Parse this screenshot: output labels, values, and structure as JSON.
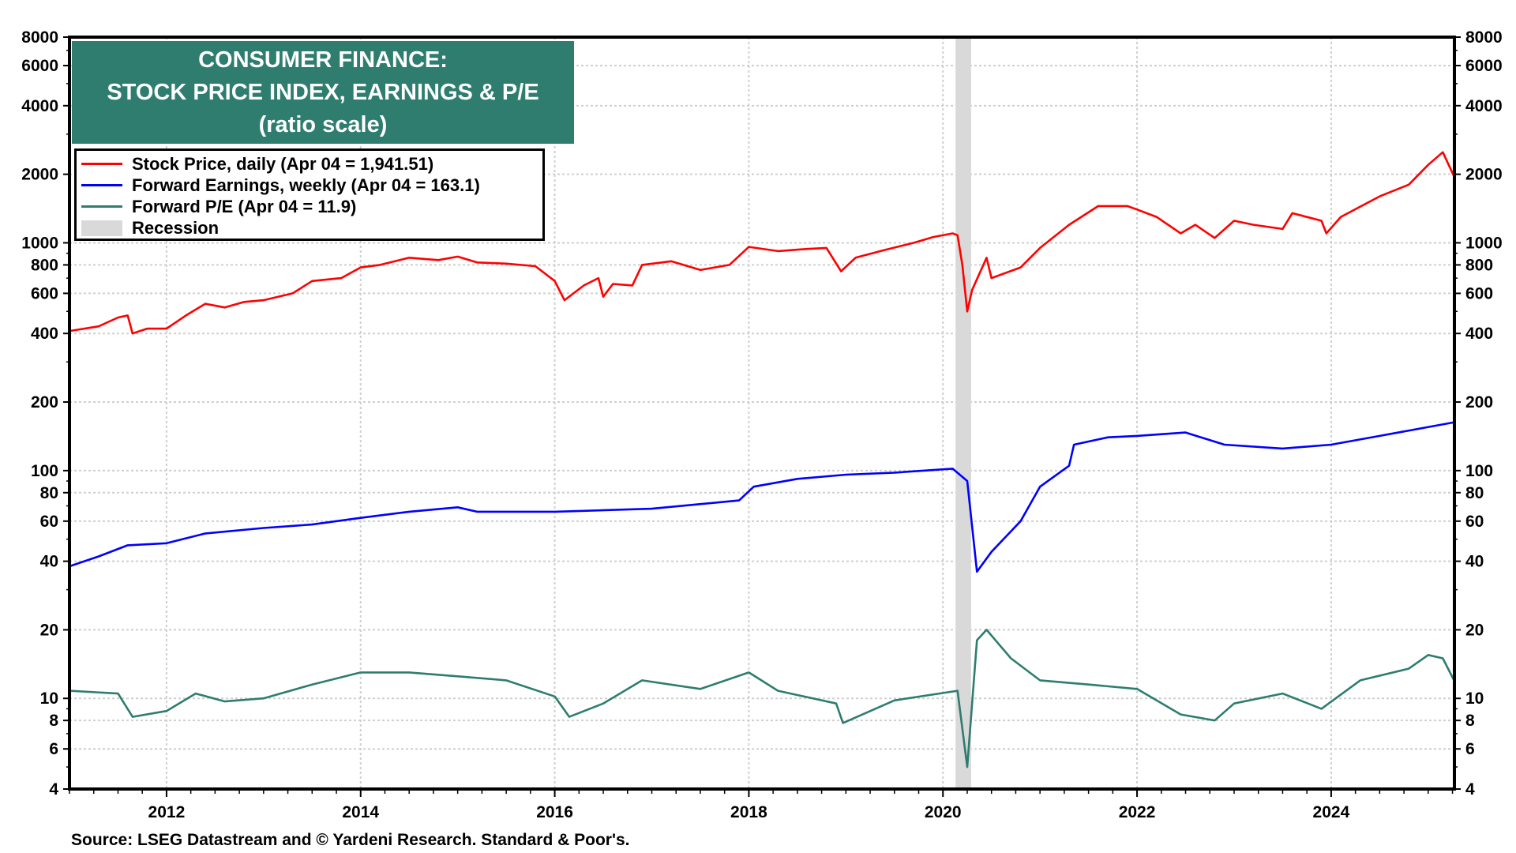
{
  "chart_data": {
    "type": "line",
    "title": "CONSUMER FINANCE:",
    "subtitle": "STOCK PRICE INDEX, EARNINGS & P/E",
    "subtitle2": "(ratio scale)",
    "yscale": "log",
    "ylim": [
      4,
      8000
    ],
    "xlim": [
      2011.0,
      2025.27
    ],
    "y_ticks": [
      "8000",
      "6000",
      "4000",
      "2000",
      "1000",
      "800",
      "600",
      "400",
      "200",
      "100",
      "80",
      "60",
      "40",
      "20",
      "10",
      "8",
      "6",
      "4"
    ],
    "y_tick_values": [
      8000,
      6000,
      4000,
      2000,
      1000,
      800,
      600,
      400,
      200,
      100,
      80,
      60,
      40,
      20,
      10,
      8,
      6,
      4
    ],
    "x_ticks": [
      "2012",
      "2014",
      "2016",
      "2018",
      "2020",
      "2022",
      "2024"
    ],
    "x_tick_values": [
      2012,
      2014,
      2016,
      2018,
      2020,
      2022,
      2024
    ],
    "grid": true,
    "legend_placement": "top-left",
    "recession": {
      "label": "Recession",
      "start": 2020.13,
      "end": 2020.29,
      "color": "#d9d9d9"
    },
    "series": [
      {
        "name": "Stock Price, daily (Apr 04 = 1,941.51)",
        "color": "#ff0000",
        "x": [
          2011.0,
          2011.3,
          2011.5,
          2011.6,
          2011.65,
          2011.8,
          2012.0,
          2012.2,
          2012.4,
          2012.6,
          2012.8,
          2013.0,
          2013.3,
          2013.5,
          2013.8,
          2014.0,
          2014.2,
          2014.5,
          2014.8,
          2015.0,
          2015.2,
          2015.5,
          2015.8,
          2016.0,
          2016.1,
          2016.3,
          2016.45,
          2016.5,
          2016.6,
          2016.8,
          2016.9,
          2017.2,
          2017.5,
          2017.8,
          2018.0,
          2018.3,
          2018.6,
          2018.8,
          2018.95,
          2019.1,
          2019.4,
          2019.7,
          2019.9,
          2020.1,
          2020.15,
          2020.2,
          2020.25,
          2020.3,
          2020.45,
          2020.5,
          2020.8,
          2021.0,
          2021.3,
          2021.6,
          2021.9,
          2022.0,
          2022.2,
          2022.45,
          2022.6,
          2022.8,
          2023.0,
          2023.2,
          2023.5,
          2023.6,
          2023.9,
          2023.95,
          2024.1,
          2024.5,
          2024.8,
          2025.0,
          2025.15,
          2025.27
        ],
        "values": [
          410,
          430,
          470,
          480,
          400,
          420,
          420,
          480,
          540,
          520,
          550,
          560,
          600,
          680,
          700,
          780,
          800,
          860,
          840,
          870,
          820,
          810,
          790,
          680,
          560,
          650,
          700,
          580,
          660,
          650,
          800,
          830,
          760,
          800,
          960,
          920,
          940,
          950,
          750,
          860,
          930,
          1000,
          1060,
          1100,
          1080,
          800,
          500,
          620,
          860,
          700,
          780,
          950,
          1200,
          1450,
          1450,
          1400,
          1300,
          1100,
          1200,
          1050,
          1250,
          1200,
          1150,
          1350,
          1250,
          1100,
          1300,
          1600,
          1800,
          2200,
          2500,
          1941.51
        ]
      },
      {
        "name": "Forward Earnings, weekly (Apr 04 = 163.1)",
        "color": "#0000ff",
        "x": [
          2011.0,
          2011.3,
          2011.6,
          2012.0,
          2012.4,
          2013.0,
          2013.5,
          2014.0,
          2014.5,
          2015.0,
          2015.2,
          2016.0,
          2017.0,
          2017.9,
          2018.05,
          2018.5,
          2019.0,
          2019.5,
          2020.1,
          2020.25,
          2020.35,
          2020.5,
          2020.8,
          2021.0,
          2021.3,
          2021.35,
          2021.7,
          2022.0,
          2022.5,
          2022.9,
          2023.5,
          2024.0,
          2024.5,
          2025.27
        ],
        "values": [
          38,
          42,
          47,
          48,
          53,
          56,
          58,
          62,
          66,
          69,
          66,
          66,
          68,
          74,
          85,
          92,
          96,
          98,
          102,
          90,
          36,
          44,
          60,
          85,
          105,
          130,
          140,
          142,
          147,
          130,
          125,
          130,
          142,
          163.1
        ]
      },
      {
        "name": "Forward P/E (Apr 04 = 11.9)",
        "color": "#2e7d6f",
        "x": [
          2011.0,
          2011.5,
          2011.65,
          2012.0,
          2012.3,
          2012.6,
          2013.0,
          2013.5,
          2014.0,
          2014.5,
          2015.0,
          2015.5,
          2016.0,
          2016.15,
          2016.5,
          2016.9,
          2017.5,
          2018.0,
          2018.3,
          2018.9,
          2018.97,
          2019.5,
          2020.15,
          2020.25,
          2020.35,
          2020.45,
          2020.7,
          2021.0,
          2021.5,
          2022.0,
          2022.45,
          2022.8,
          2023.0,
          2023.5,
          2023.9,
          2024.3,
          2024.8,
          2025.0,
          2025.15,
          2025.27
        ],
        "values": [
          10.8,
          10.5,
          8.3,
          8.8,
          10.5,
          9.7,
          10,
          11.5,
          13,
          13,
          12.5,
          12,
          10.2,
          8.3,
          9.5,
          12,
          11,
          13,
          10.8,
          9.5,
          7.8,
          9.8,
          10.8,
          5,
          18,
          20,
          15,
          12,
          11.5,
          11,
          8.5,
          8,
          9.5,
          10.5,
          9,
          12,
          13.5,
          15.5,
          15,
          11.9
        ]
      }
    ]
  },
  "source": "Source: LSEG Datastream and © Yardeni Research. Standard & Poor's."
}
